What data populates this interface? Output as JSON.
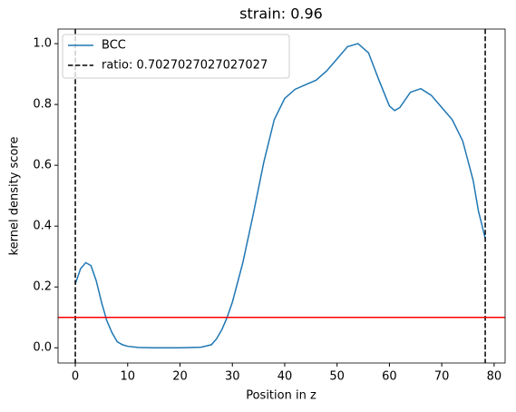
{
  "chart_data": {
    "type": "line",
    "title": "strain: 0.96",
    "x_label": "Position in z",
    "y_label": "kernel density score",
    "x": [
      0,
      1,
      2,
      3,
      4,
      5,
      6,
      7,
      8,
      9,
      10,
      12,
      15,
      20,
      24,
      26,
      27,
      28,
      29,
      30,
      32,
      34,
      36,
      38,
      40,
      42,
      44,
      46,
      48,
      50,
      52,
      54,
      56,
      58,
      60,
      61,
      62,
      64,
      66,
      68,
      70,
      72,
      74,
      76,
      77,
      78.3
    ],
    "series": [
      {
        "name": "BCC",
        "color": "#1f77b4",
        "values": [
          0.21,
          0.26,
          0.28,
          0.27,
          0.22,
          0.15,
          0.09,
          0.05,
          0.02,
          0.01,
          0.005,
          0.001,
          0,
          0,
          0.002,
          0.01,
          0.03,
          0.06,
          0.1,
          0.15,
          0.28,
          0.44,
          0.61,
          0.75,
          0.82,
          0.85,
          0.865,
          0.88,
          0.91,
          0.95,
          0.99,
          1.0,
          0.97,
          0.88,
          0.795,
          0.78,
          0.79,
          0.84,
          0.852,
          0.83,
          0.79,
          0.75,
          0.68,
          0.55,
          0.45,
          0.36
        ]
      }
    ],
    "vertical_lines": {
      "name": "ratio: 0.7027027027027027",
      "color": "#000000",
      "x": [
        0,
        78.3
      ]
    },
    "horizontal_line": {
      "y": 0.1,
      "color": "#ff0000"
    },
    "xlim": [
      -3.3,
      82.1
    ],
    "ylim": [
      -0.05,
      1.048
    ],
    "xticks": [
      0,
      10,
      20,
      30,
      40,
      50,
      60,
      70,
      80
    ],
    "yticks": [
      {
        "value": 0,
        "label": "0.0"
      },
      {
        "value": 0.2,
        "label": "0.2"
      },
      {
        "value": 0.4,
        "label": "0.4"
      },
      {
        "value": 0.6,
        "label": "0.6"
      },
      {
        "value": 0.8,
        "label": "0.8"
      },
      {
        "value": 1.0,
        "label": "1.0"
      }
    ],
    "legend": "upper left"
  }
}
